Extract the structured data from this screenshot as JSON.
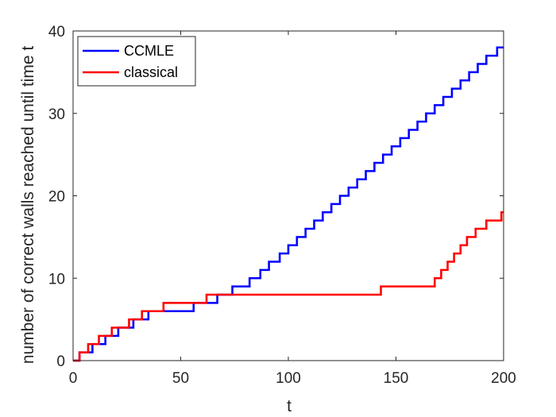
{
  "chart_data": {
    "type": "line",
    "title": "",
    "xlabel": "t",
    "ylabel": "number of correct walls reached until time t",
    "xlim": [
      0,
      200
    ],
    "ylim": [
      0,
      40
    ],
    "xticks": [
      0,
      50,
      100,
      150,
      200
    ],
    "yticks": [
      0,
      10,
      20,
      30,
      40
    ],
    "grid": false,
    "legend_position": "top-left",
    "series": [
      {
        "name": "CCMLE",
        "color": "#0000ff",
        "step": true,
        "points": [
          [
            0,
            0
          ],
          [
            3,
            1
          ],
          [
            7,
            1
          ],
          [
            8,
            1
          ],
          [
            9,
            2
          ],
          [
            14,
            2
          ],
          [
            15,
            3
          ],
          [
            20,
            3
          ],
          [
            21,
            4
          ],
          [
            27,
            4
          ],
          [
            28,
            5
          ],
          [
            34,
            5
          ],
          [
            35,
            6
          ],
          [
            55,
            6
          ],
          [
            56,
            7
          ],
          [
            66,
            7
          ],
          [
            67,
            8
          ],
          [
            73,
            8
          ],
          [
            74,
            9
          ],
          [
            81,
            9
          ],
          [
            82,
            10
          ],
          [
            87,
            11
          ],
          [
            91,
            12
          ],
          [
            96,
            13
          ],
          [
            100,
            14
          ],
          [
            104,
            15
          ],
          [
            108,
            16
          ],
          [
            112,
            17
          ],
          [
            116,
            18
          ],
          [
            120,
            19
          ],
          [
            124,
            20
          ],
          [
            128,
            21
          ],
          [
            132,
            22
          ],
          [
            136,
            23
          ],
          [
            140,
            24
          ],
          [
            144,
            25
          ],
          [
            148,
            26
          ],
          [
            152,
            27
          ],
          [
            156,
            28
          ],
          [
            160,
            29
          ],
          [
            164,
            30
          ],
          [
            168,
            31
          ],
          [
            172,
            32
          ],
          [
            176,
            33
          ],
          [
            180,
            34
          ],
          [
            184,
            35
          ],
          [
            188,
            36
          ],
          [
            192,
            37
          ],
          [
            197,
            38
          ],
          [
            200,
            38
          ]
        ]
      },
      {
        "name": "classical",
        "color": "#ff0000",
        "step": true,
        "points": [
          [
            0,
            0
          ],
          [
            3,
            1
          ],
          [
            6,
            1
          ],
          [
            7,
            2
          ],
          [
            11,
            2
          ],
          [
            12,
            3
          ],
          [
            17,
            3
          ],
          [
            18,
            4
          ],
          [
            25,
            4
          ],
          [
            26,
            5
          ],
          [
            31,
            5
          ],
          [
            32,
            6
          ],
          [
            41,
            6
          ],
          [
            42,
            7
          ],
          [
            61,
            7
          ],
          [
            62,
            8
          ],
          [
            142,
            8
          ],
          [
            143,
            9
          ],
          [
            167,
            9
          ],
          [
            168,
            10
          ],
          [
            171,
            11
          ],
          [
            174,
            12
          ],
          [
            177,
            13
          ],
          [
            180,
            14
          ],
          [
            183,
            15
          ],
          [
            187,
            16
          ],
          [
            192,
            17
          ],
          [
            199,
            18
          ],
          [
            200,
            18
          ]
        ]
      }
    ]
  }
}
